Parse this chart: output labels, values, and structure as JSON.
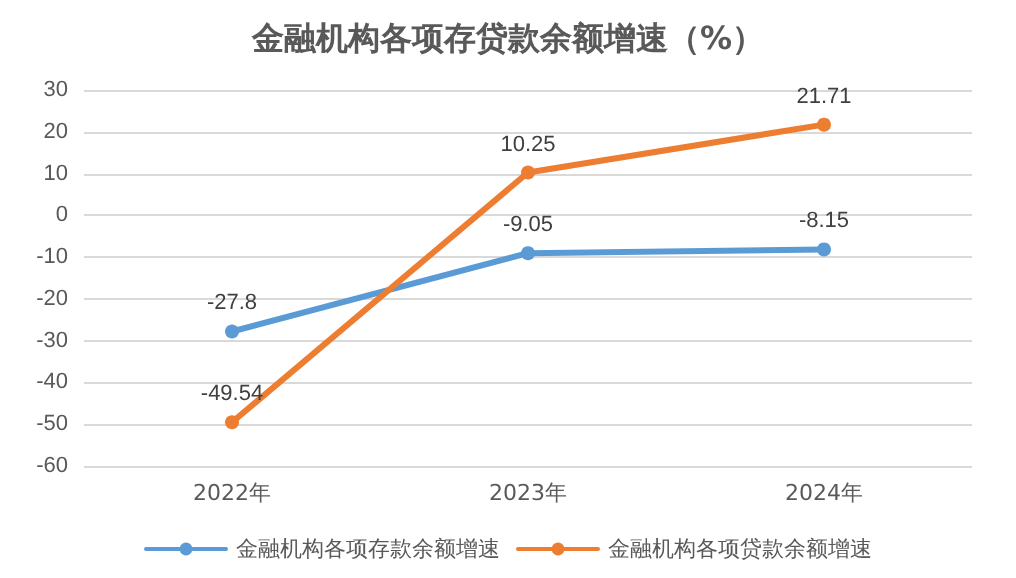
{
  "chart_data": {
    "type": "line",
    "title": "金融机构各项存贷款余额增速（%）",
    "categories": [
      "2022年",
      "2023年",
      "2024年"
    ],
    "series": [
      {
        "name": "金融机构各项存款余额增速",
        "color": "#5b9bd5",
        "values": [
          -27.8,
          -9.05,
          -8.15
        ]
      },
      {
        "name": "金融机构各项贷款余额增速",
        "color": "#ed7d31",
        "values": [
          -49.54,
          10.25,
          21.71
        ]
      }
    ],
    "ylim": [
      -60,
      30
    ],
    "yticks": [
      -60,
      -50,
      -40,
      -30,
      -20,
      -10,
      0,
      10,
      20,
      30
    ],
    "grid": "y",
    "legend": "bottom",
    "marker": "circle",
    "line_style": "solid",
    "data_labels": true
  }
}
